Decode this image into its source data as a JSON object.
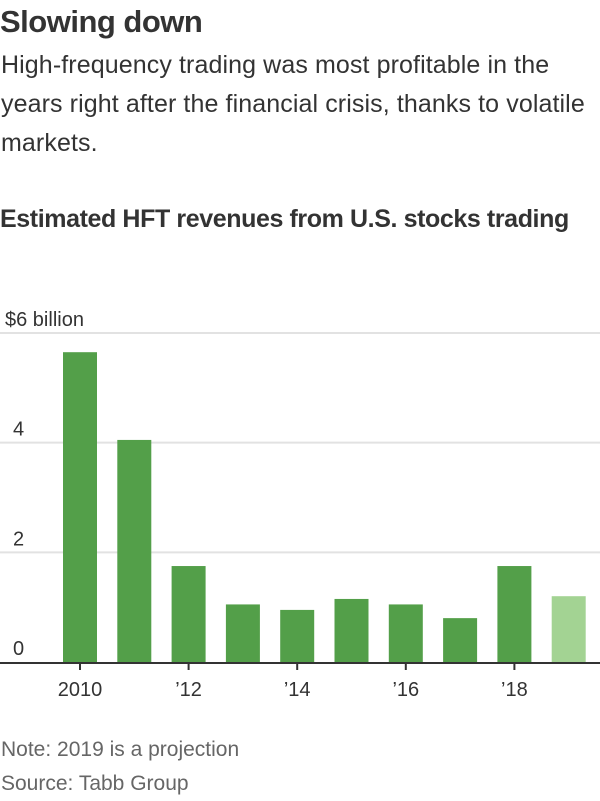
{
  "headline": "Slowing down",
  "dek": "High-frequency trading was most profitable in the years right after the financial crisis, thanks to volatile markets.",
  "note": "Note: 2019 is a projection",
  "source": "Source: Tabb Group",
  "colors": {
    "bar_actual": "#539f49",
    "bar_projection": "#a3d393",
    "gridline": "#e2e2e2",
    "axis": "#333333",
    "text": "#333333",
    "muted_text": "#666666"
  },
  "chart_data": {
    "type": "bar",
    "title": "Estimated HFT revenues from U.S. stocks trading",
    "xlabel": "",
    "ylabel": "$ billion",
    "ylim": [
      0,
      6
    ],
    "yticks": [
      0,
      2,
      4,
      6
    ],
    "ytick_labels": [
      "0",
      "2",
      "4",
      "$6 billion"
    ],
    "grid": true,
    "categories": [
      "2010",
      "2011",
      "2012",
      "2013",
      "2014",
      "2015",
      "2016",
      "2017",
      "2018",
      "2019"
    ],
    "values": [
      5.65,
      4.05,
      1.75,
      1.05,
      0.95,
      1.15,
      1.05,
      0.8,
      1.75,
      1.2
    ],
    "projection": [
      false,
      false,
      false,
      false,
      false,
      false,
      false,
      false,
      false,
      true
    ],
    "xtick_positions": [
      "2010",
      "2012",
      "2014",
      "2016",
      "2018"
    ],
    "xtick_labels": [
      "2010",
      "’12",
      "’14",
      "’16",
      "’18"
    ],
    "legend": null
  }
}
